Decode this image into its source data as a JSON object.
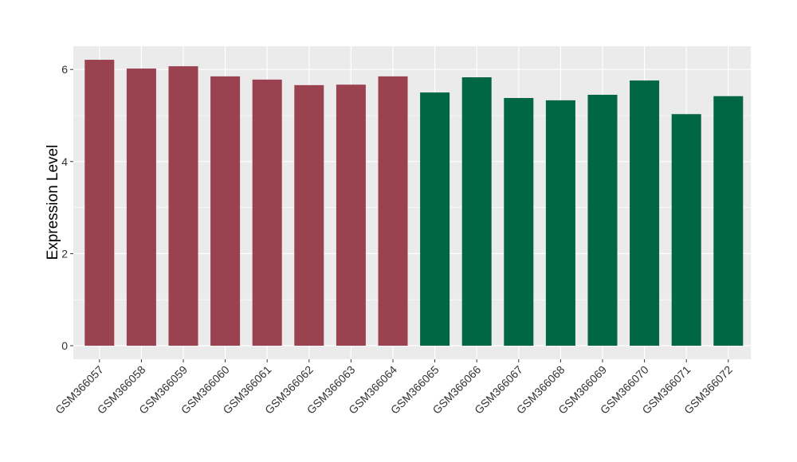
{
  "chart_data": {
    "type": "bar",
    "title": "",
    "xlabel": "",
    "ylabel": "Expression Level",
    "ylim": [
      -0.3,
      6.5
    ],
    "yticks": [
      0,
      2,
      4,
      6
    ],
    "grid": true,
    "legend": "none",
    "categories": [
      "GSM366057",
      "GSM366058",
      "GSM366059",
      "GSM366060",
      "GSM366061",
      "GSM366062",
      "GSM366063",
      "GSM366064",
      "GSM366065",
      "GSM366066",
      "GSM366067",
      "GSM366068",
      "GSM366069",
      "GSM366070",
      "GSM366071",
      "GSM366072"
    ],
    "values": [
      6.21,
      6.02,
      6.07,
      5.85,
      5.78,
      5.66,
      5.67,
      5.85,
      5.5,
      5.83,
      5.38,
      5.33,
      5.45,
      5.76,
      5.03,
      5.42
    ],
    "colors": [
      "#9A4250",
      "#9A4250",
      "#9A4250",
      "#9A4250",
      "#9A4250",
      "#9A4250",
      "#9A4250",
      "#9A4250",
      "#006644",
      "#006644",
      "#006644",
      "#006644",
      "#006644",
      "#006644",
      "#006644",
      "#006644"
    ],
    "panel_background": "#EBEBEB",
    "grid_color": "#FFFFFF"
  }
}
